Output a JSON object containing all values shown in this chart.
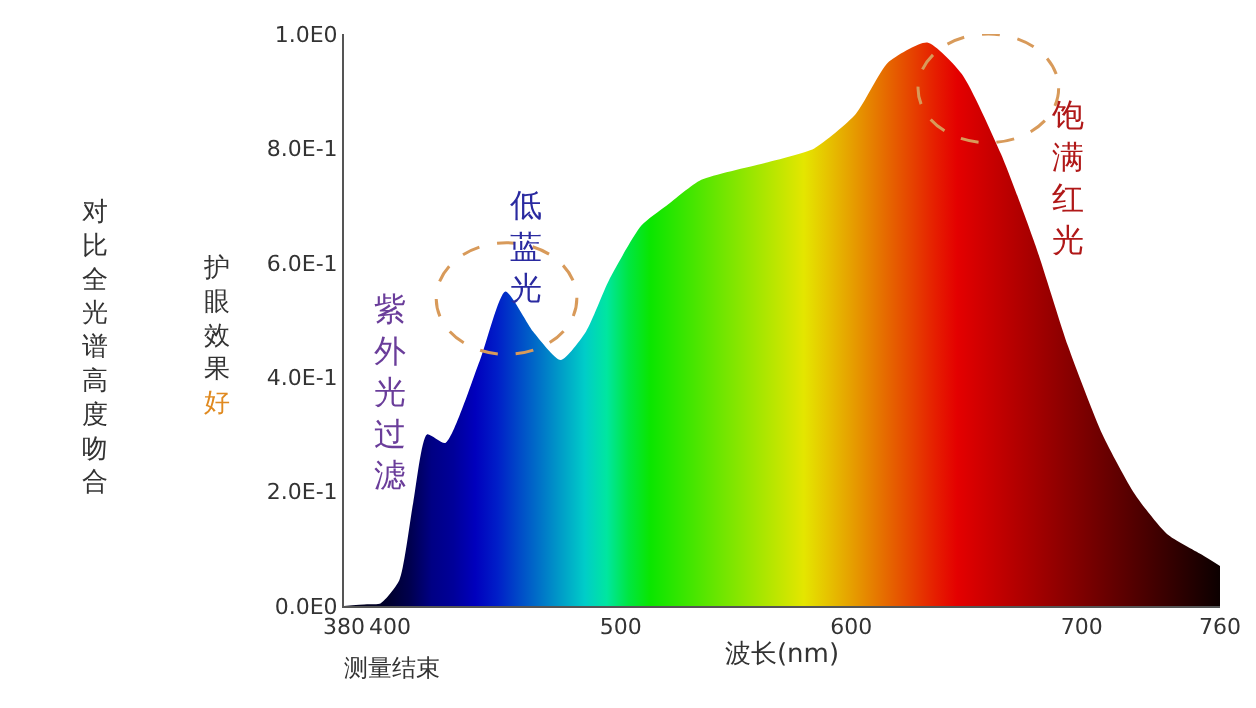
{
  "chart_data": {
    "type": "area",
    "x": [
      380,
      390,
      396,
      404,
      410,
      416,
      424,
      439,
      450,
      462,
      474,
      485,
      495,
      509,
      520,
      535,
      563,
      584,
      602,
      616,
      633,
      648,
      665,
      680,
      694,
      709,
      723,
      737,
      752,
      760
    ],
    "values": [
      0,
      0.003,
      0.005,
      0.045,
      0.18,
      0.3,
      0.285,
      0.43,
      0.55,
      0.48,
      0.43,
      0.48,
      0.57,
      0.665,
      0.7,
      0.745,
      0.775,
      0.8,
      0.86,
      0.95,
      0.985,
      0.93,
      0.79,
      0.63,
      0.455,
      0.3,
      0.196,
      0.126,
      0.09,
      0.07
    ],
    "xlim": [
      380,
      760
    ],
    "ylim": [
      0,
      1
    ],
    "xticks": [
      380,
      400,
      500,
      600,
      700,
      760
    ],
    "yticks": [
      {
        "value": 0,
        "label": "0.0E0"
      },
      {
        "value": 0.2,
        "label": "2.0E-1"
      },
      {
        "value": 0.4,
        "label": "4.0E-1"
      },
      {
        "value": 0.6,
        "label": "6.0E-1"
      },
      {
        "value": 0.8,
        "label": "8.0E-1"
      },
      {
        "value": 1,
        "label": "1.0E0"
      }
    ],
    "xlabel": "波长(nm)",
    "annotations": [
      "对比全光谱高度吻合",
      "护眼效果好",
      "紫外光过滤",
      "低蓝光",
      "饱满红光",
      "测量结束"
    ],
    "grid": false,
    "legend": false
  }
}
